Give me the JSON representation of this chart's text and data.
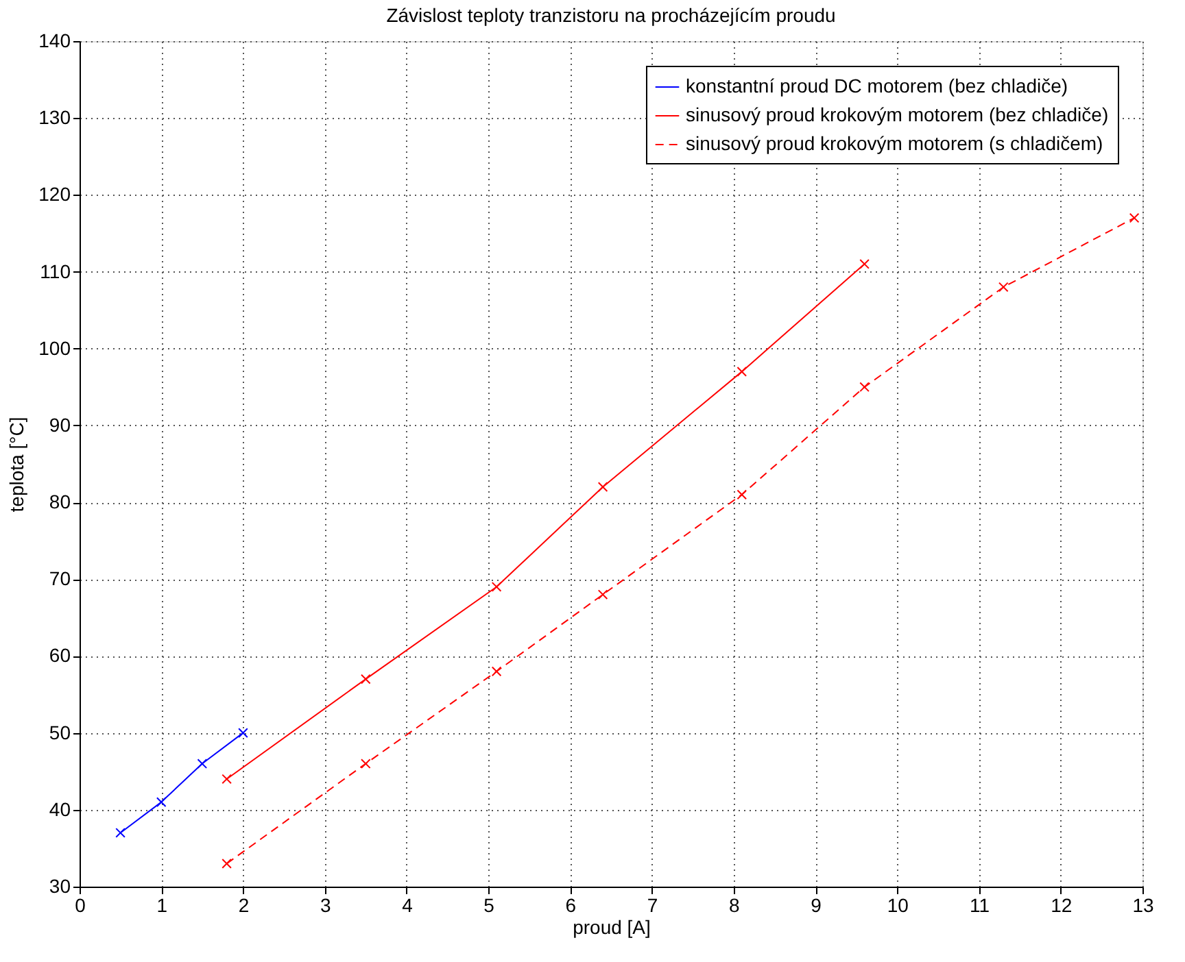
{
  "chart_data": {
    "type": "line",
    "title": "Závislost teploty tranzistoru na procházejícím proudu",
    "xlabel": "proud [A]",
    "ylabel": "teplota [°C]",
    "xlim": [
      0,
      13
    ],
    "xticks": [
      0,
      1,
      2,
      3,
      4,
      5,
      6,
      7,
      8,
      9,
      10,
      11,
      12,
      13
    ],
    "ylim": [
      30,
      140
    ],
    "yticks": [
      30,
      40,
      50,
      60,
      70,
      80,
      90,
      100,
      110,
      120,
      130,
      140
    ],
    "grid": true,
    "legend": "top right",
    "marker": "cross",
    "series": [
      {
        "name": "konstantní proud DC motorem (bez chladiče)",
        "color": "#0000ff",
        "line_style": "solid",
        "x": [
          0.5,
          1,
          1.5,
          2
        ],
        "values": [
          37,
          41,
          46,
          50
        ]
      },
      {
        "name": "sinusový proud krokovým motorem (bez chladiče)",
        "color": "#ff0000",
        "line_style": "solid",
        "x": [
          1.8,
          3.5,
          5.1,
          6.4,
          8.1,
          9.6
        ],
        "values": [
          44,
          57,
          69,
          82,
          97,
          111
        ]
      },
      {
        "name": "sinusový proud krokovým motorem (s chladičem)",
        "color": "#ff0000",
        "line_style": "dashed",
        "x": [
          1.8,
          3.5,
          5.1,
          6.4,
          8.1,
          9.6,
          11.3,
          12.9
        ],
        "values": [
          33,
          46,
          58,
          68,
          81,
          95,
          108,
          117
        ]
      }
    ]
  }
}
